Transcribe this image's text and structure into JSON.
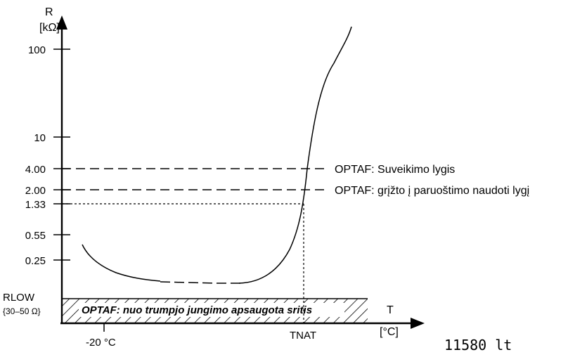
{
  "chart_data": {
    "type": "line",
    "y_axis": {
      "title": "R",
      "unit": "[kΩ]",
      "scale": "log",
      "ticks": [
        "100",
        "10",
        "4.00",
        "2.00",
        "1.33",
        "0.55",
        "0.25"
      ],
      "tick_values": [
        100,
        10,
        4.0,
        2.0,
        1.33,
        0.55,
        0.25
      ],
      "low_label": "RLOW",
      "low_range": "{30–50 Ω}"
    },
    "x_axis": {
      "title": "T",
      "unit": "[°C]",
      "tick_labels": [
        "-20 °C",
        "TNAT"
      ]
    },
    "reference_lines": [
      {
        "value": 4.0,
        "label": "OPTAF: Suveikimo lygis",
        "style": "dashed"
      },
      {
        "value": 2.0,
        "label": "OPTAF: grįžto į paruoštimo naudoti lygį",
        "style": "dashed"
      },
      {
        "value": 1.33,
        "style": "dotted",
        "to": "TNAT"
      }
    ],
    "hatched_region": {
      "label": "OPTAF: nuo trumpjo jungimo apsaugota sritis"
    },
    "curve": {
      "description_points": [
        {
          "x": "-20 °C",
          "y": 0.4
        },
        {
          "x": "TNAT",
          "y": 1.33
        }
      ]
    },
    "document_id": "11580  lt"
  }
}
